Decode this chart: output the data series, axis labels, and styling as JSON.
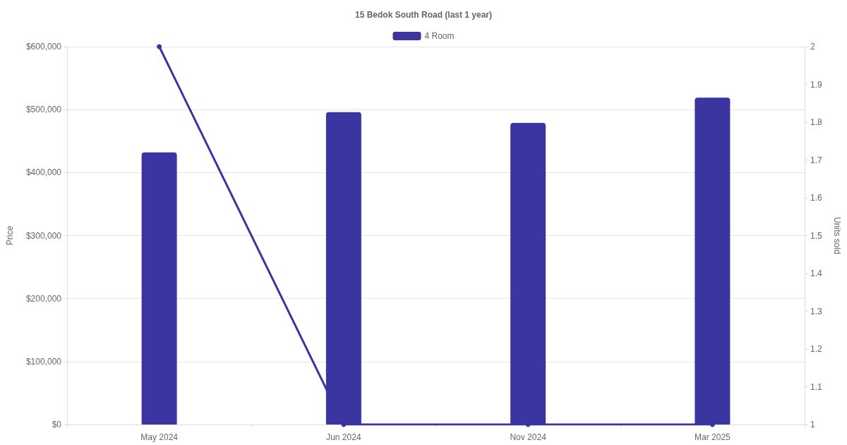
{
  "chart_data": {
    "type": "bar",
    "title": "15 Bedok South Road (last 1 year)",
    "ylabel": "Price",
    "y2label": "Units sold",
    "categories": [
      "May 2024",
      "Jun 2024",
      "Nov 2024",
      "Mar 2025"
    ],
    "series": [
      {
        "name": "4 Room",
        "color": "#3a35a0",
        "values": [
          432000,
          496000,
          479000,
          519000
        ]
      },
      {
        "type": "line",
        "axis": "y2",
        "color": "#3a35a0",
        "values": [
          2,
          1,
          1,
          1
        ],
        "marker": "circle",
        "line_style": "solid"
      }
    ],
    "ylim": [
      0,
      600000
    ],
    "yticks": [
      {
        "value": 0,
        "label": "$0"
      },
      {
        "value": 100000,
        "label": "$100,000"
      },
      {
        "value": 200000,
        "label": "$200,000"
      },
      {
        "value": 300000,
        "label": "$300,000"
      },
      {
        "value": 400000,
        "label": "$400,000"
      },
      {
        "value": 500000,
        "label": "$500,000"
      },
      {
        "value": 600000,
        "label": "$600,000"
      }
    ],
    "y2lim": [
      1,
      2
    ],
    "y2ticks": [
      1,
      1.1,
      1.2,
      1.3,
      1.4,
      1.5,
      1.6,
      1.7,
      1.8,
      1.9,
      2
    ],
    "grid": "y",
    "legend": "top"
  }
}
